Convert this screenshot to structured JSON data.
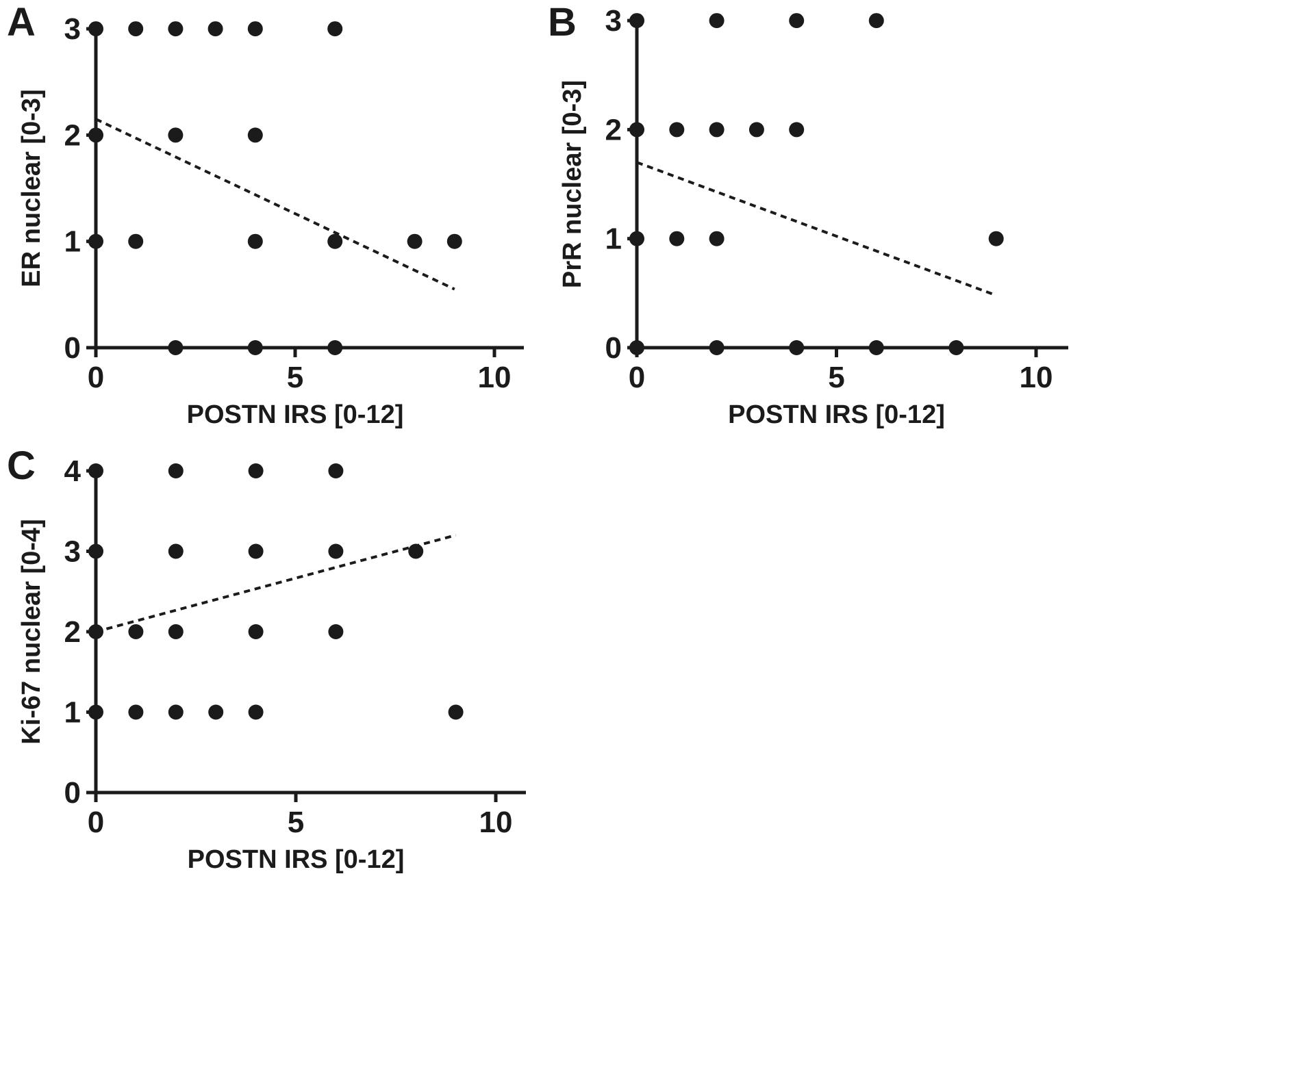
{
  "figure": {
    "background_color": "#ffffff",
    "ink_color": "#1b1b1b"
  },
  "chart_data": [
    {
      "type": "scatter",
      "panel_label": "A",
      "xlabel": "POSTN IRS [0-12]",
      "ylabel": "ER nuclear [0-3]",
      "xlim": [
        0,
        10.7
      ],
      "ylim": [
        0,
        3
      ],
      "xticks": [
        0,
        5,
        10
      ],
      "yticks": [
        0,
        1,
        2,
        3
      ],
      "grid": false,
      "legend": false,
      "marker": "filled-circle",
      "points": [
        [
          0,
          3
        ],
        [
          1,
          3
        ],
        [
          2,
          3
        ],
        [
          3,
          3
        ],
        [
          4,
          3
        ],
        [
          6,
          3
        ],
        [
          0,
          2
        ],
        [
          2,
          2
        ],
        [
          4,
          2
        ],
        [
          0,
          1
        ],
        [
          1,
          1
        ],
        [
          4,
          1
        ],
        [
          6,
          1
        ],
        [
          8,
          1
        ],
        [
          9,
          1
        ],
        [
          2,
          0
        ],
        [
          4,
          0
        ],
        [
          6,
          0
        ]
      ],
      "trend": {
        "style": "dashed",
        "x1": 0,
        "y1": 2.15,
        "x2": 9,
        "y2": 0.55
      }
    },
    {
      "type": "scatter",
      "panel_label": "B",
      "xlabel": "POSTN IRS [0-12]",
      "ylabel": "PrR nuclear [0-3]",
      "xlim": [
        0,
        10.7
      ],
      "ylim": [
        0,
        3
      ],
      "xticks": [
        0,
        5,
        10
      ],
      "yticks": [
        0,
        1,
        2,
        3
      ],
      "grid": false,
      "legend": false,
      "marker": "filled-circle",
      "points": [
        [
          0,
          3
        ],
        [
          2,
          3
        ],
        [
          4,
          3
        ],
        [
          6,
          3
        ],
        [
          0,
          2
        ],
        [
          1,
          2
        ],
        [
          2,
          2
        ],
        [
          3,
          2
        ],
        [
          4,
          2
        ],
        [
          0,
          1
        ],
        [
          1,
          1
        ],
        [
          2,
          1
        ],
        [
          9,
          1
        ],
        [
          0,
          0
        ],
        [
          2,
          0
        ],
        [
          4,
          0
        ],
        [
          6,
          0
        ],
        [
          8,
          0
        ]
      ],
      "trend": {
        "style": "dashed",
        "x1": 0,
        "y1": 1.7,
        "x2": 9,
        "y2": 0.48
      }
    },
    {
      "type": "scatter",
      "panel_label": "C",
      "xlabel": "POSTN IRS [0-12]",
      "ylabel": "Ki-67 nuclear [0-4]",
      "xlim": [
        0,
        10.7
      ],
      "ylim": [
        0,
        4
      ],
      "xticks": [
        0,
        5,
        10
      ],
      "yticks": [
        0,
        1,
        2,
        3,
        4
      ],
      "grid": false,
      "legend": false,
      "marker": "filled-circle",
      "points": [
        [
          0,
          4
        ],
        [
          2,
          4
        ],
        [
          4,
          4
        ],
        [
          6,
          4
        ],
        [
          0,
          3
        ],
        [
          2,
          3
        ],
        [
          4,
          3
        ],
        [
          6,
          3
        ],
        [
          8,
          3
        ],
        [
          0,
          2
        ],
        [
          1,
          2
        ],
        [
          2,
          2
        ],
        [
          4,
          2
        ],
        [
          6,
          2
        ],
        [
          0,
          1
        ],
        [
          1,
          1
        ],
        [
          2,
          1
        ],
        [
          3,
          1
        ],
        [
          4,
          1
        ],
        [
          9,
          1
        ]
      ],
      "trend": {
        "style": "dashed",
        "x1": 0,
        "y1": 2.0,
        "x2": 9,
        "y2": 3.2
      }
    }
  ]
}
